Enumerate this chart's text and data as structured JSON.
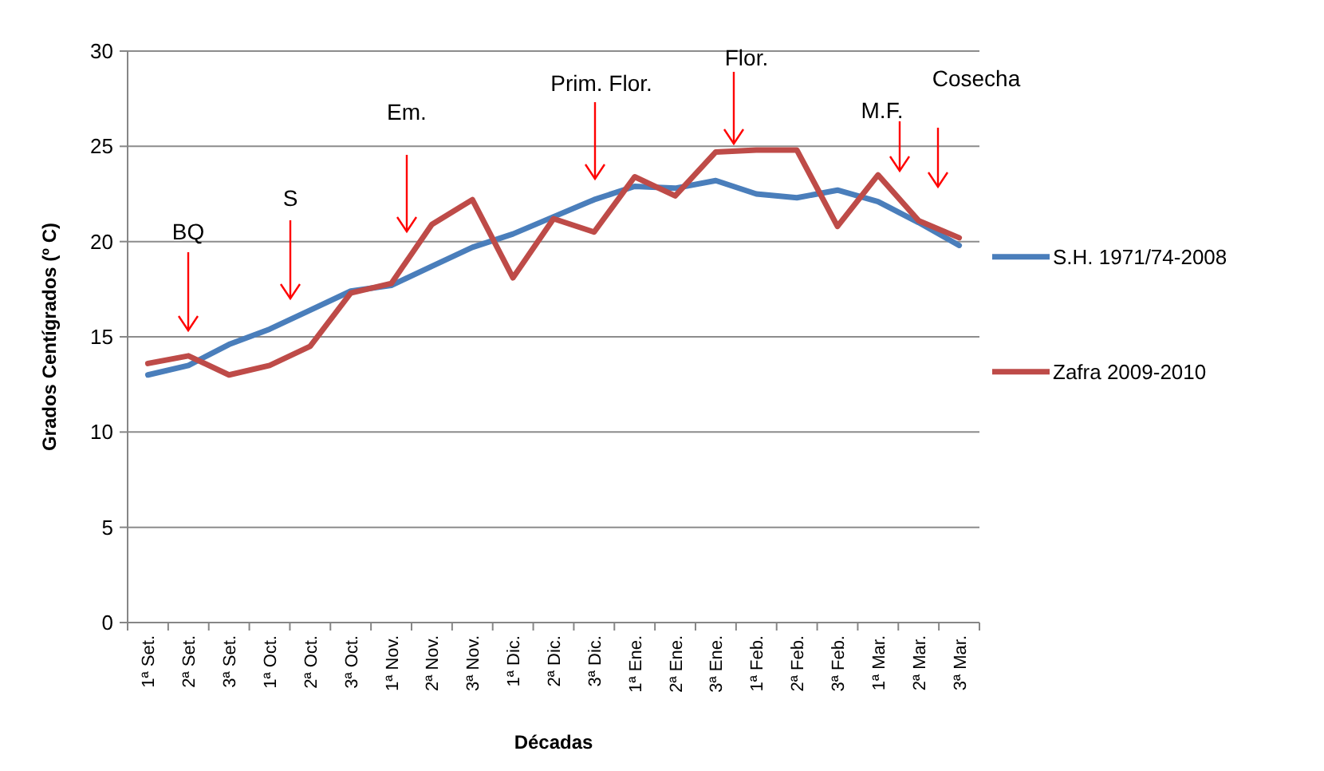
{
  "chart_data": {
    "type": "line",
    "xlabel": "Décadas",
    "ylabel": "Grados Centígrados (º C)",
    "categories": [
      "1ª Set.",
      "2ª Set.",
      "3ª Set.",
      "1ª Oct.",
      "2ª Oct.",
      "3ª Oct.",
      "1ª Nov.",
      "2ª Nov.",
      "3ª Nov.",
      "1ª Dic.",
      "2ª Dic.",
      "3ª Dic.",
      "1ª Ene.",
      "2ª Ene.",
      "3ª Ene.",
      "1ª Feb.",
      "2ª Feb.",
      "3ª Feb.",
      "1ª Mar.",
      "2ª Mar.",
      "3ª Mar."
    ],
    "series": [
      {
        "name": "S.H. 1971/74-2008",
        "color": "#4a7ebb",
        "values": [
          13.0,
          13.5,
          14.6,
          15.4,
          16.4,
          17.4,
          17.7,
          18.7,
          19.7,
          20.4,
          21.3,
          22.2,
          22.9,
          22.8,
          23.2,
          22.5,
          22.3,
          22.7,
          22.1,
          21.0,
          19.8
        ]
      },
      {
        "name": "Zafra 2009-2010",
        "color": "#be4b48",
        "values": [
          13.6,
          14.0,
          13.0,
          13.5,
          14.5,
          17.3,
          17.8,
          20.9,
          22.2,
          18.1,
          21.2,
          20.5,
          23.4,
          22.4,
          24.7,
          24.8,
          24.8,
          20.8,
          23.5,
          21.1,
          20.2
        ]
      }
    ],
    "ylim": [
      0,
      30
    ],
    "yticks": [
      0,
      5,
      10,
      15,
      20,
      25,
      30
    ],
    "grid": "y",
    "legend": "right",
    "marker": "none",
    "line_style": "solid",
    "annotations": [
      "BQ",
      "S",
      "Em.",
      "Prim. Flor.",
      "Flor.",
      "M.F.",
      "Cosecha"
    ]
  }
}
